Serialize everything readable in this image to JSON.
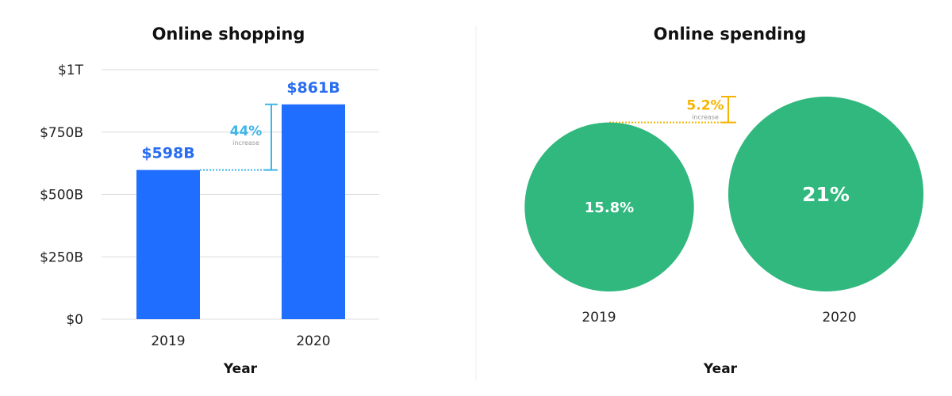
{
  "colors": {
    "bar": "#1f6eff",
    "bar_label": "#2a6ef0",
    "bubble": "#30b87e",
    "shopping_annotation": "#3fb6e8",
    "spending_annotation": "#f5b400",
    "grid": "#dcdcdc",
    "divider": "#eeeeee"
  },
  "chart_data": [
    {
      "type": "bar",
      "title": "Online shopping",
      "xlabel": "Year",
      "ylabel": "",
      "categories": [
        "2019",
        "2020"
      ],
      "values": [
        598,
        861
      ],
      "value_labels": [
        "$598B",
        "$861B"
      ],
      "ylim": [
        0,
        1000
      ],
      "yticks": [
        {
          "value": 0,
          "label": "$0"
        },
        {
          "value": 250,
          "label": "$250B"
        },
        {
          "value": 500,
          "label": "$500B"
        },
        {
          "value": 750,
          "label": "$750B"
        },
        {
          "value": 1000,
          "label": "$1T"
        }
      ],
      "grid": true,
      "annotation": {
        "value": "44%",
        "label": "increase"
      }
    },
    {
      "type": "bubble",
      "title": "Online spending",
      "xlabel": "Year",
      "categories": [
        "2019",
        "2020"
      ],
      "values": [
        15.8,
        21
      ],
      "value_labels": [
        "15.8%",
        "21%"
      ],
      "annotation": {
        "value": "5.2%",
        "label": "increase"
      }
    }
  ]
}
